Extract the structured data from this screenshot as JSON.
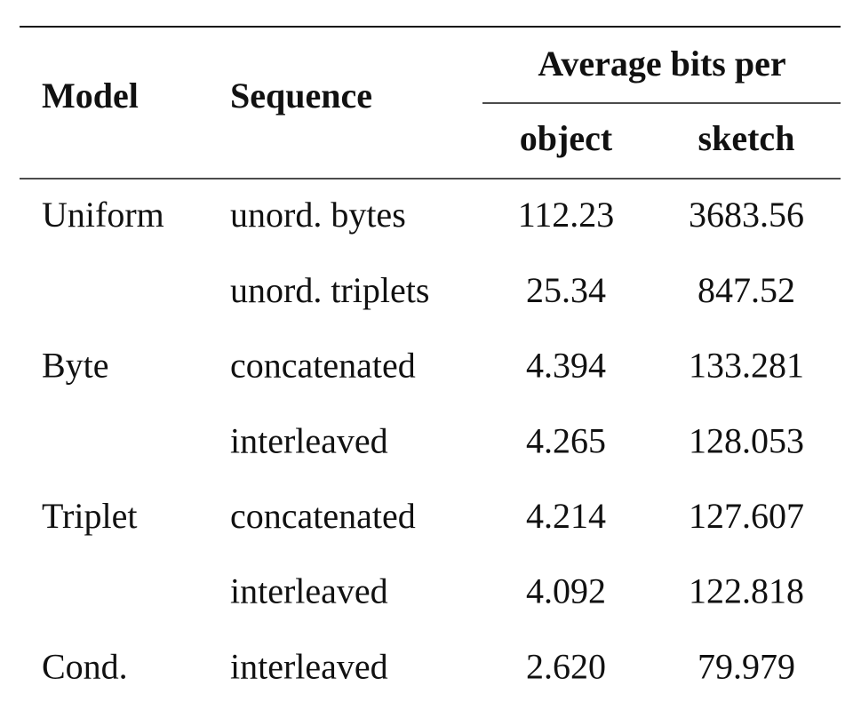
{
  "table": {
    "header": {
      "model": "Model",
      "sequence": "Sequence",
      "group": "Average bits per",
      "columns": [
        "object",
        "sketch"
      ]
    },
    "rows": [
      [
        "Uniform",
        "unord. bytes",
        "112.23",
        "3683.56"
      ],
      [
        null,
        "unord. triplets",
        "25.34",
        "847.52"
      ],
      [
        "Byte",
        "concatenated",
        "4.394",
        "133.281"
      ],
      [
        null,
        "interleaved",
        "4.265",
        "128.053"
      ],
      [
        "Triplet",
        "concatenated",
        "4.214",
        "127.607"
      ],
      [
        null,
        "interleaved",
        "4.092",
        "122.818"
      ],
      [
        "Cond.",
        "interleaved",
        "2.620",
        "79.979"
      ]
    ]
  }
}
